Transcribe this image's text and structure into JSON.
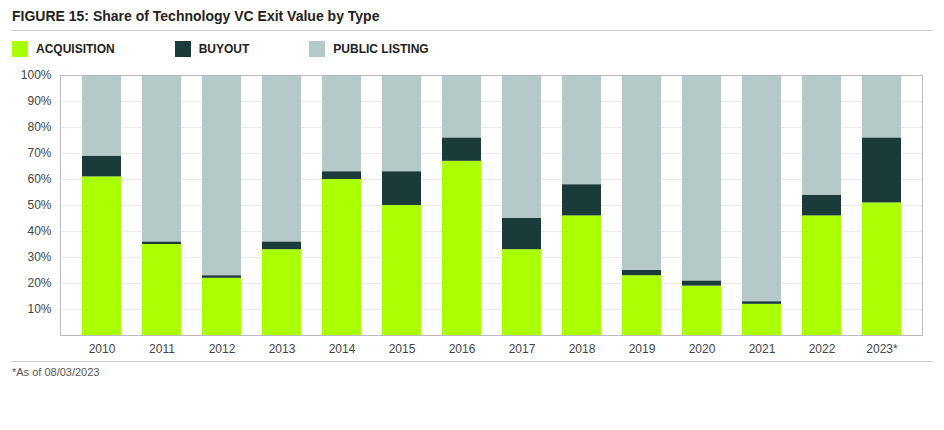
{
  "chart_data": {
    "type": "bar",
    "title": "FIGURE 15: Share of Technology VC Exit Value by Type",
    "categories": [
      "2010",
      "2011",
      "2012",
      "2013",
      "2014",
      "2015",
      "2016",
      "2017",
      "2018",
      "2019",
      "2020",
      "2021",
      "2022",
      "2023*"
    ],
    "series": [
      {
        "name": "ACQUISITION",
        "color": "#aaff00",
        "values": [
          61,
          35,
          22,
          33,
          60,
          50,
          67,
          33,
          46,
          23,
          19,
          12,
          46,
          51
        ]
      },
      {
        "name": "BUYOUT",
        "color": "#1b3a3a",
        "values": [
          8,
          1,
          1,
          3,
          3,
          13,
          9,
          12,
          12,
          2,
          2,
          1,
          8,
          25
        ]
      },
      {
        "name": "PUBLIC LISTING",
        "color": "#b5c9c9",
        "values": [
          31,
          64,
          77,
          64,
          37,
          37,
          24,
          55,
          42,
          75,
          79,
          87,
          46,
          24
        ]
      }
    ],
    "stacked": true,
    "ylim": [
      0,
      100
    ],
    "yticks": [
      {
        "value": 10,
        "label": "10%"
      },
      {
        "value": 20,
        "label": "20%"
      },
      {
        "value": 30,
        "label": "30%"
      },
      {
        "value": 40,
        "label": "40%"
      },
      {
        "value": 50,
        "label": "50%"
      },
      {
        "value": 60,
        "label": "60%"
      },
      {
        "value": 70,
        "label": "70%"
      },
      {
        "value": 80,
        "label": "80%"
      },
      {
        "value": 90,
        "label": "90%"
      },
      {
        "value": 100,
        "label": "100%"
      }
    ],
    "grid": true,
    "legend": "top",
    "annotations": [
      "*As of 08/03/2023"
    ]
  }
}
